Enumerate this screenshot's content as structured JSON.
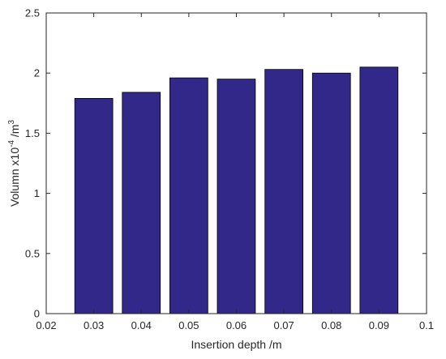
{
  "chart_data": {
    "type": "bar",
    "x": [
      0.03,
      0.04,
      0.05,
      0.06,
      0.07,
      0.08,
      0.09
    ],
    "values": [
      1.79,
      1.84,
      1.96,
      1.95,
      2.03,
      2.0,
      2.05
    ],
    "xlabel": "Insertion depth /m",
    "ylabel": {
      "main": "Volumn x10",
      "exp1": "-4",
      "unit": " /m",
      "exp2": "3"
    },
    "xlim": [
      0.02,
      0.1
    ],
    "ylim": [
      0,
      2.5
    ],
    "xticks": [
      "0.02",
      "0.03",
      "0.04",
      "0.05",
      "0.06",
      "0.07",
      "0.08",
      "0.09",
      "0.1"
    ],
    "yticks": [
      "0",
      "0.5",
      "1",
      "1.5",
      "2",
      "2.5"
    ],
    "bar_color": "#31288a",
    "grid": false
  }
}
